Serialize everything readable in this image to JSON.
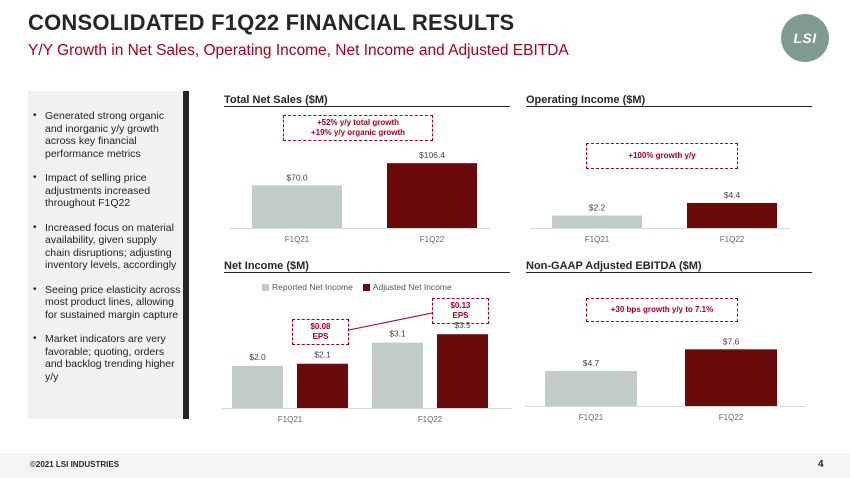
{
  "header": {
    "title": "CONSOLIDATED F1Q22 FINANCIAL RESULTS",
    "subtitle": "Y/Y Growth in Net Sales, Operating Income, Net Income and Adjusted EBITDA",
    "logo_text": "LSI"
  },
  "sidebar": {
    "bullets": [
      "Generated strong organic and inorganic y/y growth across key financial performance metrics",
      "Impact of selling price adjustments increased throughout F1Q22",
      "Increased focus on material availability, given supply chain disruptions; adjusting inventory levels, accordingly",
      "Seeing price elasticity across most product lines, allowing for sustained margin capture",
      "Market indicators are very favorable; quoting, orders and backlog trending higher y/y"
    ]
  },
  "colors": {
    "reported": "#c1cbc7",
    "adjusted": "#6b0a0a",
    "accent": "#a8001a",
    "text_dark": "#262626"
  },
  "callouts": {
    "net_sales_line1": "+52% y/y total growth",
    "net_sales_line2": "+19% y/y organic growth",
    "operating_income": "+100% growth y/y",
    "eps_q21_line1": "$0.08",
    "eps_q21_line2": "EPS",
    "eps_q22_line1": "$0.13",
    "eps_q22_line2": "EPS",
    "ebitda": "+30 bps growth y/y to 7.1%"
  },
  "chart_data": [
    {
      "type": "bar",
      "title": "Total Net Sales ($M)",
      "categories": [
        "F1Q21",
        "F1Q22"
      ],
      "values": [
        70.0,
        106.4
      ],
      "labels": [
        "$70.0",
        "$106.4"
      ]
    },
    {
      "type": "bar",
      "title": "Operating Income ($M)",
      "categories": [
        "F1Q21",
        "F1Q22"
      ],
      "values": [
        2.2,
        4.4
      ],
      "labels": [
        "$2.2",
        "$4.4"
      ]
    },
    {
      "type": "bar",
      "title": "Net Income ($M)",
      "categories": [
        "F1Q21",
        "F1Q22"
      ],
      "series": [
        {
          "name": "Reported Net Income",
          "values": [
            2.0,
            3.1
          ],
          "labels": [
            "$2.0",
            "$3.1"
          ]
        },
        {
          "name": "Adjusted Net Income",
          "values": [
            2.1,
            3.5
          ],
          "labels": [
            "$2.1",
            "$3.5"
          ]
        }
      ],
      "legend": "top"
    },
    {
      "type": "bar",
      "title": "Non-GAAP Adjusted EBITDA ($M)",
      "categories": [
        "F1Q21",
        "F1Q22"
      ],
      "values": [
        4.7,
        7.6
      ],
      "labels": [
        "$4.7",
        "$7.6"
      ]
    }
  ],
  "footer": {
    "copyright": "©2021 LSI INDUSTRIES",
    "page_number": "4"
  }
}
